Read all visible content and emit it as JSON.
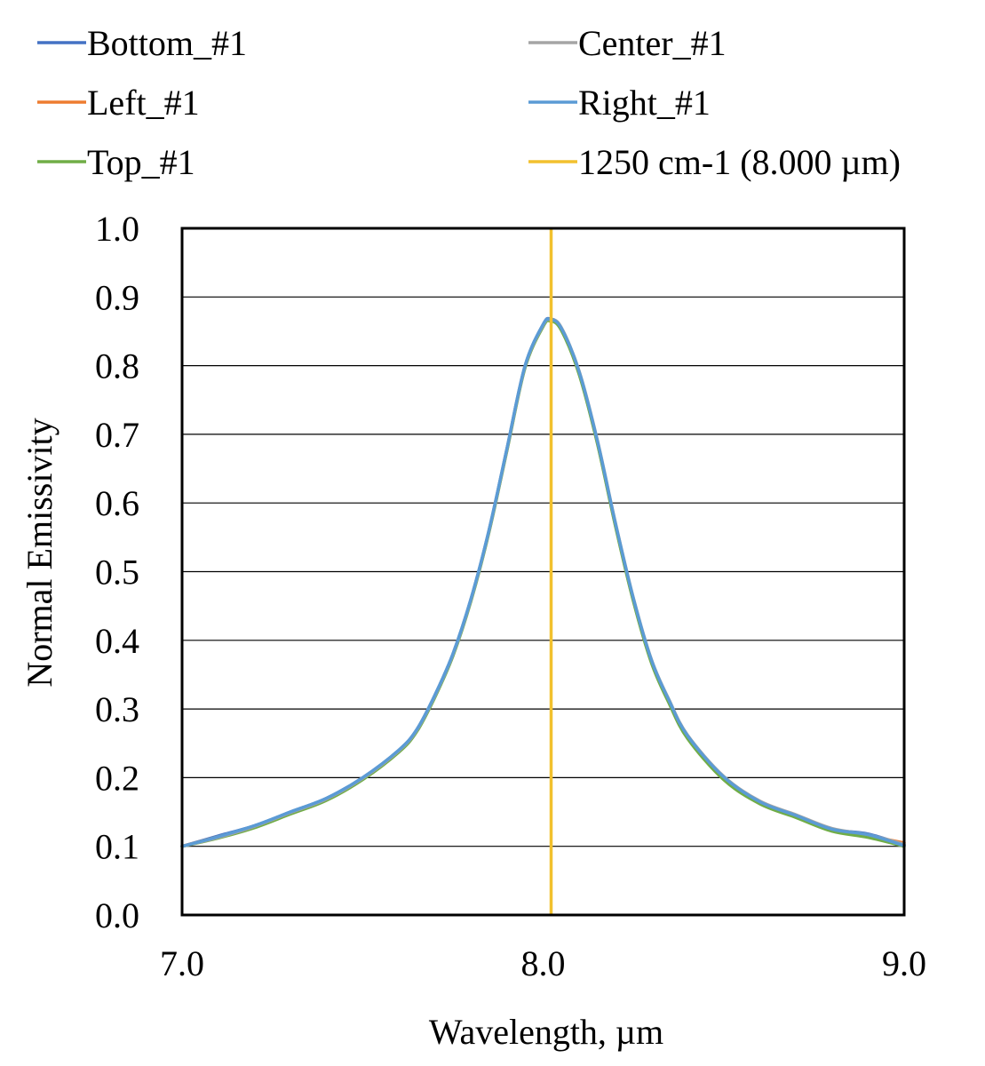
{
  "chart_data": {
    "type": "line",
    "xlabel": "Wavelength, µm",
    "ylabel": "Normal Emissivity",
    "xlim": [
      7.0,
      9.0
    ],
    "ylim": [
      0.0,
      1.0
    ],
    "x_ticks": [
      "7.0",
      "8.0",
      "9.0"
    ],
    "y_ticks": [
      "0.0",
      "0.1",
      "0.2",
      "0.3",
      "0.4",
      "0.5",
      "0.6",
      "0.7",
      "0.8",
      "0.9",
      "1.0"
    ],
    "grid": "horizontal",
    "legend_position": "top",
    "x": [
      7.0,
      7.1,
      7.2,
      7.3,
      7.4,
      7.5,
      7.6,
      7.65,
      7.7,
      7.75,
      7.8,
      7.85,
      7.9,
      7.95,
      8.0,
      8.02,
      8.05,
      8.1,
      8.15,
      8.2,
      8.25,
      8.3,
      8.35,
      8.4,
      8.5,
      8.6,
      8.7,
      8.8,
      8.9,
      9.0
    ],
    "series": [
      {
        "name": "Bottom_#1",
        "color": "#4472C4",
        "values": [
          0.1,
          0.115,
          0.13,
          0.15,
          0.17,
          0.2,
          0.24,
          0.27,
          0.32,
          0.38,
          0.46,
          0.56,
          0.68,
          0.8,
          0.86,
          0.868,
          0.855,
          0.79,
          0.69,
          0.57,
          0.46,
          0.37,
          0.31,
          0.26,
          0.2,
          0.165,
          0.145,
          0.125,
          0.118,
          0.102
        ]
      },
      {
        "name": "Left_#1",
        "color": "#ED7D31",
        "values": [
          0.1,
          0.114,
          0.128,
          0.148,
          0.168,
          0.198,
          0.238,
          0.268,
          0.318,
          0.378,
          0.458,
          0.558,
          0.678,
          0.798,
          0.858,
          0.866,
          0.853,
          0.788,
          0.688,
          0.568,
          0.458,
          0.368,
          0.308,
          0.258,
          0.198,
          0.163,
          0.143,
          0.123,
          0.115,
          0.105
        ]
      },
      {
        "name": "Top_#1",
        "color": "#70AD47",
        "values": [
          0.1,
          0.112,
          0.127,
          0.147,
          0.167,
          0.197,
          0.237,
          0.267,
          0.317,
          0.377,
          0.457,
          0.557,
          0.677,
          0.797,
          0.857,
          0.865,
          0.852,
          0.787,
          0.687,
          0.567,
          0.457,
          0.367,
          0.307,
          0.257,
          0.197,
          0.162,
          0.142,
          0.122,
          0.113,
          0.1
        ]
      },
      {
        "name": "Center_#1",
        "color": "#A5A5A5",
        "values": [
          0.1,
          0.113,
          0.129,
          0.149,
          0.169,
          0.199,
          0.239,
          0.269,
          0.319,
          0.379,
          0.459,
          0.559,
          0.679,
          0.799,
          0.859,
          0.867,
          0.856,
          0.792,
          0.692,
          0.572,
          0.462,
          0.372,
          0.312,
          0.262,
          0.202,
          0.166,
          0.146,
          0.126,
          0.117,
          0.103
        ]
      },
      {
        "name": "Right_#1",
        "color": "#5B9BD5",
        "values": [
          0.1,
          0.114,
          0.13,
          0.15,
          0.17,
          0.2,
          0.24,
          0.27,
          0.32,
          0.38,
          0.46,
          0.56,
          0.68,
          0.8,
          0.86,
          0.867,
          0.855,
          0.791,
          0.691,
          0.571,
          0.461,
          0.371,
          0.311,
          0.261,
          0.201,
          0.165,
          0.145,
          0.125,
          0.117,
          0.101
        ]
      }
    ],
    "reference_line": {
      "name": "1250 cm-1 (8.000 µm)",
      "x": 8.0,
      "color": "#F2C12E"
    },
    "legend_order": [
      "Bottom_#1",
      "Center_#1",
      "Left_#1",
      "Right_#1",
      "Top_#1",
      "1250 cm-1 (8.000 µm)"
    ]
  }
}
